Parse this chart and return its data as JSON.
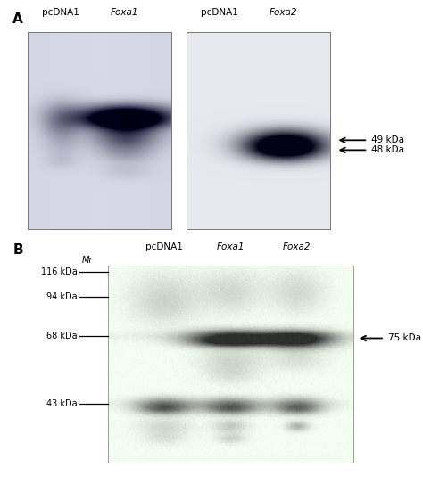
{
  "panel_A_label": "A",
  "panel_B_label": "B",
  "panel_A_left_labels": [
    "pcDNA1",
    "Foxa1"
  ],
  "panel_A_right_labels": [
    "pcDNA1",
    "Foxa2"
  ],
  "panel_B_labels": [
    "pcDNA1",
    "Foxa1",
    "Foxa2"
  ],
  "panel_B_left_labels": [
    "116 kDa",
    "94 kDa",
    "68 kDa",
    "43 kDa"
  ],
  "panel_B_Mr": "Mr",
  "arrow_labels_A": [
    "49 kDa",
    "48 kDa"
  ],
  "arrow_label_B": "75 kDa",
  "bg_color": "#ffffff"
}
